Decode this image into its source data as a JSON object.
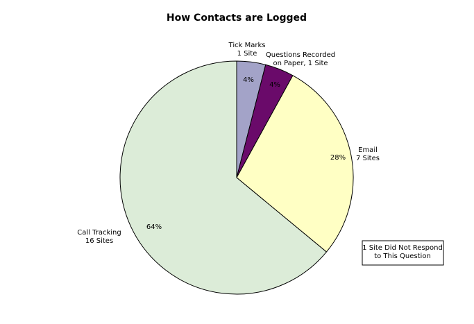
{
  "chart_data": {
    "type": "pie",
    "title": "How Contacts are Logged",
    "categories": [
      "Tick Marks\n1 Site",
      "Questions Recorded\non Paper, 1 Site",
      "Email\n7 Sites",
      "Call Tracking\n16 Sites"
    ],
    "values": [
      4,
      4,
      28,
      64
    ],
    "value_labels": [
      "4%",
      "4%",
      "28%",
      "64%"
    ],
    "colors": [
      "#a3a3c8",
      "#6a0a6a",
      "#ffffc4",
      "#dcecd8"
    ],
    "annotation": "1 Site Did Not Respond\nto This Question"
  }
}
